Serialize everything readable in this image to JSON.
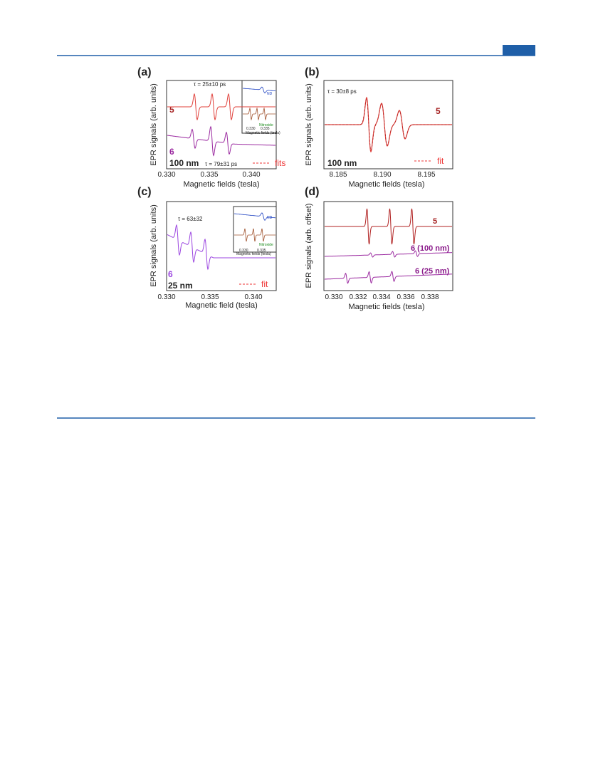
{
  "figure": {
    "panels": [
      {
        "label": "(a)",
        "xticks": [
          "0.330",
          "0.335",
          "0.340"
        ],
        "xlabel": "Magnetic fields (tesla)",
        "ylabel": "EPR signals (arb. units)",
        "annotations": [
          "τ = 25±10 ps",
          "5",
          "6",
          "100 nm",
          "τ = 79±31 ps",
          "fits"
        ],
        "inset": [
          "ND",
          "Nitroxide",
          "0.330",
          "0.335",
          "Magnetic fields (tesla)"
        ]
      },
      {
        "label": "(b)",
        "xticks": [
          "8.185",
          "8.190",
          "8.195"
        ],
        "xlabel": "Magnetic fields (tesla)",
        "ylabel": "EPR signals (arb. units)",
        "annotations": [
          "τ = 30±8 ps",
          "5",
          "100 nm",
          "fit"
        ]
      },
      {
        "label": "(c)",
        "xticks": [
          "0.330",
          "0.335",
          "0.340"
        ],
        "xlabel": "Magnetic field (tesla)",
        "ylabel": "EPR signals (arb. units)",
        "annotations": [
          "τ = 63±32",
          "6",
          "25 nm",
          "fit"
        ],
        "inset": [
          "ND",
          "Nitroxide",
          "0.330",
          "0.335",
          "Magnetic fields (tesla)"
        ]
      },
      {
        "label": "(d)",
        "xticks": [
          "0.330",
          "0.332",
          "0.334",
          "0.336",
          "0.338"
        ],
        "xlabel": "Magnetic fields (tesla)",
        "ylabel": "EPR signals (arb. offset)",
        "annotations": [
          "5",
          "6 (100 nm)",
          "6 (25 nm)"
        ]
      }
    ]
  }
}
